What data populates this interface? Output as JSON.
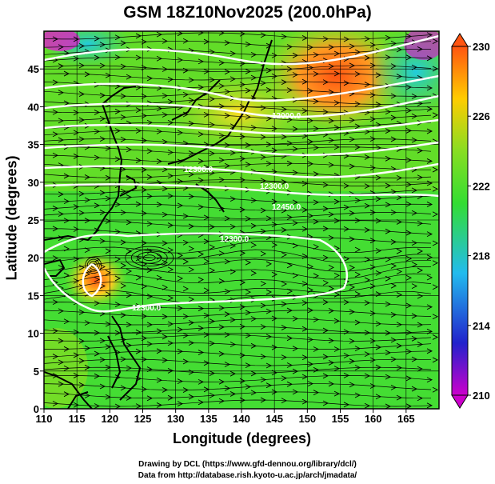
{
  "title": "GSM 18Z10Nov2025 (200.0hPa)",
  "axes": {
    "xlabel": "Longitude (degrees)",
    "ylabel": "Latitude  (degrees)",
    "x_ticks": [
      "110",
      "115",
      "120",
      "125",
      "130",
      "135",
      "140",
      "145",
      "150",
      "155",
      "160",
      "165"
    ],
    "y_ticks": [
      "0",
      "5",
      "10",
      "15",
      "20",
      "25",
      "30",
      "35",
      "40",
      "45"
    ],
    "xlim": [
      110,
      170
    ],
    "ylim": [
      0,
      50
    ]
  },
  "colorbar": {
    "labels": [
      "230",
      "226",
      "222",
      "218",
      "214",
      "210"
    ],
    "range": [
      210,
      230
    ],
    "colors": [
      "#cc00cc",
      "#2222cc",
      "#22bbee",
      "#33dd33",
      "#88dd22",
      "#ffcc00",
      "#ff5511"
    ]
  },
  "contours": {
    "labels": [
      "12000.0",
      "12450.0",
      "12300.0",
      "12300.0",
      "12300.0",
      "12300.0"
    ]
  },
  "credits": {
    "line1": "Drawing by DCL (https://www.gfd-dennou.org/library/dcl/)",
    "line2": "Data from http://database.rish.kyoto-u.ac.jp/arch/jmadata/"
  }
}
